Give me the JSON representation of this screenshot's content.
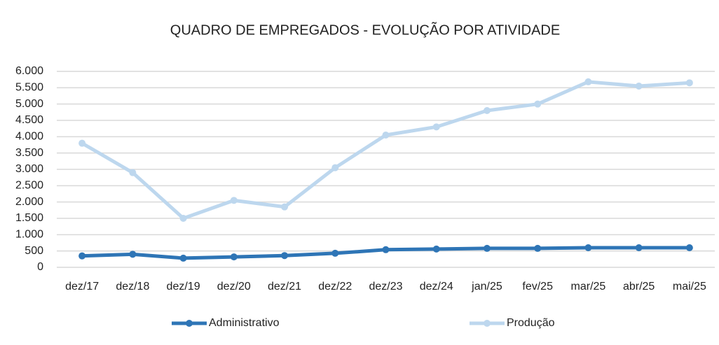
{
  "chart_data": {
    "type": "line",
    "title": "QUADRO DE EMPREGADOS - EVOLUÇÃO POR ATIVIDADE",
    "categories": [
      "dez/17",
      "dez/18",
      "dez/19",
      "dez/20",
      "dez/21",
      "dez/22",
      "dez/23",
      "dez/24",
      "jan/25",
      "fev/25",
      "mar/25",
      "abr/25",
      "mai/25"
    ],
    "series": [
      {
        "name": "Administrativo",
        "color": "#2e75b6",
        "values": [
          350,
          400,
          280,
          320,
          360,
          430,
          540,
          560,
          580,
          580,
          600,
          600,
          600
        ]
      },
      {
        "name": "Produção",
        "color": "#bdd7ee",
        "values": [
          3800,
          2900,
          1500,
          2050,
          1850,
          3050,
          4050,
          4300,
          4800,
          5000,
          5680,
          5550,
          5650
        ]
      }
    ],
    "ylim": [
      0,
      6000
    ],
    "yticks": [
      0,
      500,
      {
        "value": 1000,
        "label": "1.000"
      },
      {
        "value": 1500,
        "label": "1.500"
      },
      {
        "value": 2000,
        "label": "2.000"
      },
      {
        "value": 2500,
        "label": "2.500"
      },
      {
        "value": 3000,
        "label": "3.000"
      },
      {
        "value": 3500,
        "label": "3.500"
      },
      {
        "value": 4000,
        "label": "4.000"
      },
      {
        "value": 4500,
        "label": "4.500"
      },
      {
        "value": 5000,
        "label": "5.000"
      },
      {
        "value": 5500,
        "label": "5.500"
      },
      {
        "value": 6000,
        "label": "6.000"
      }
    ],
    "grid": true,
    "legend": "bottom"
  }
}
